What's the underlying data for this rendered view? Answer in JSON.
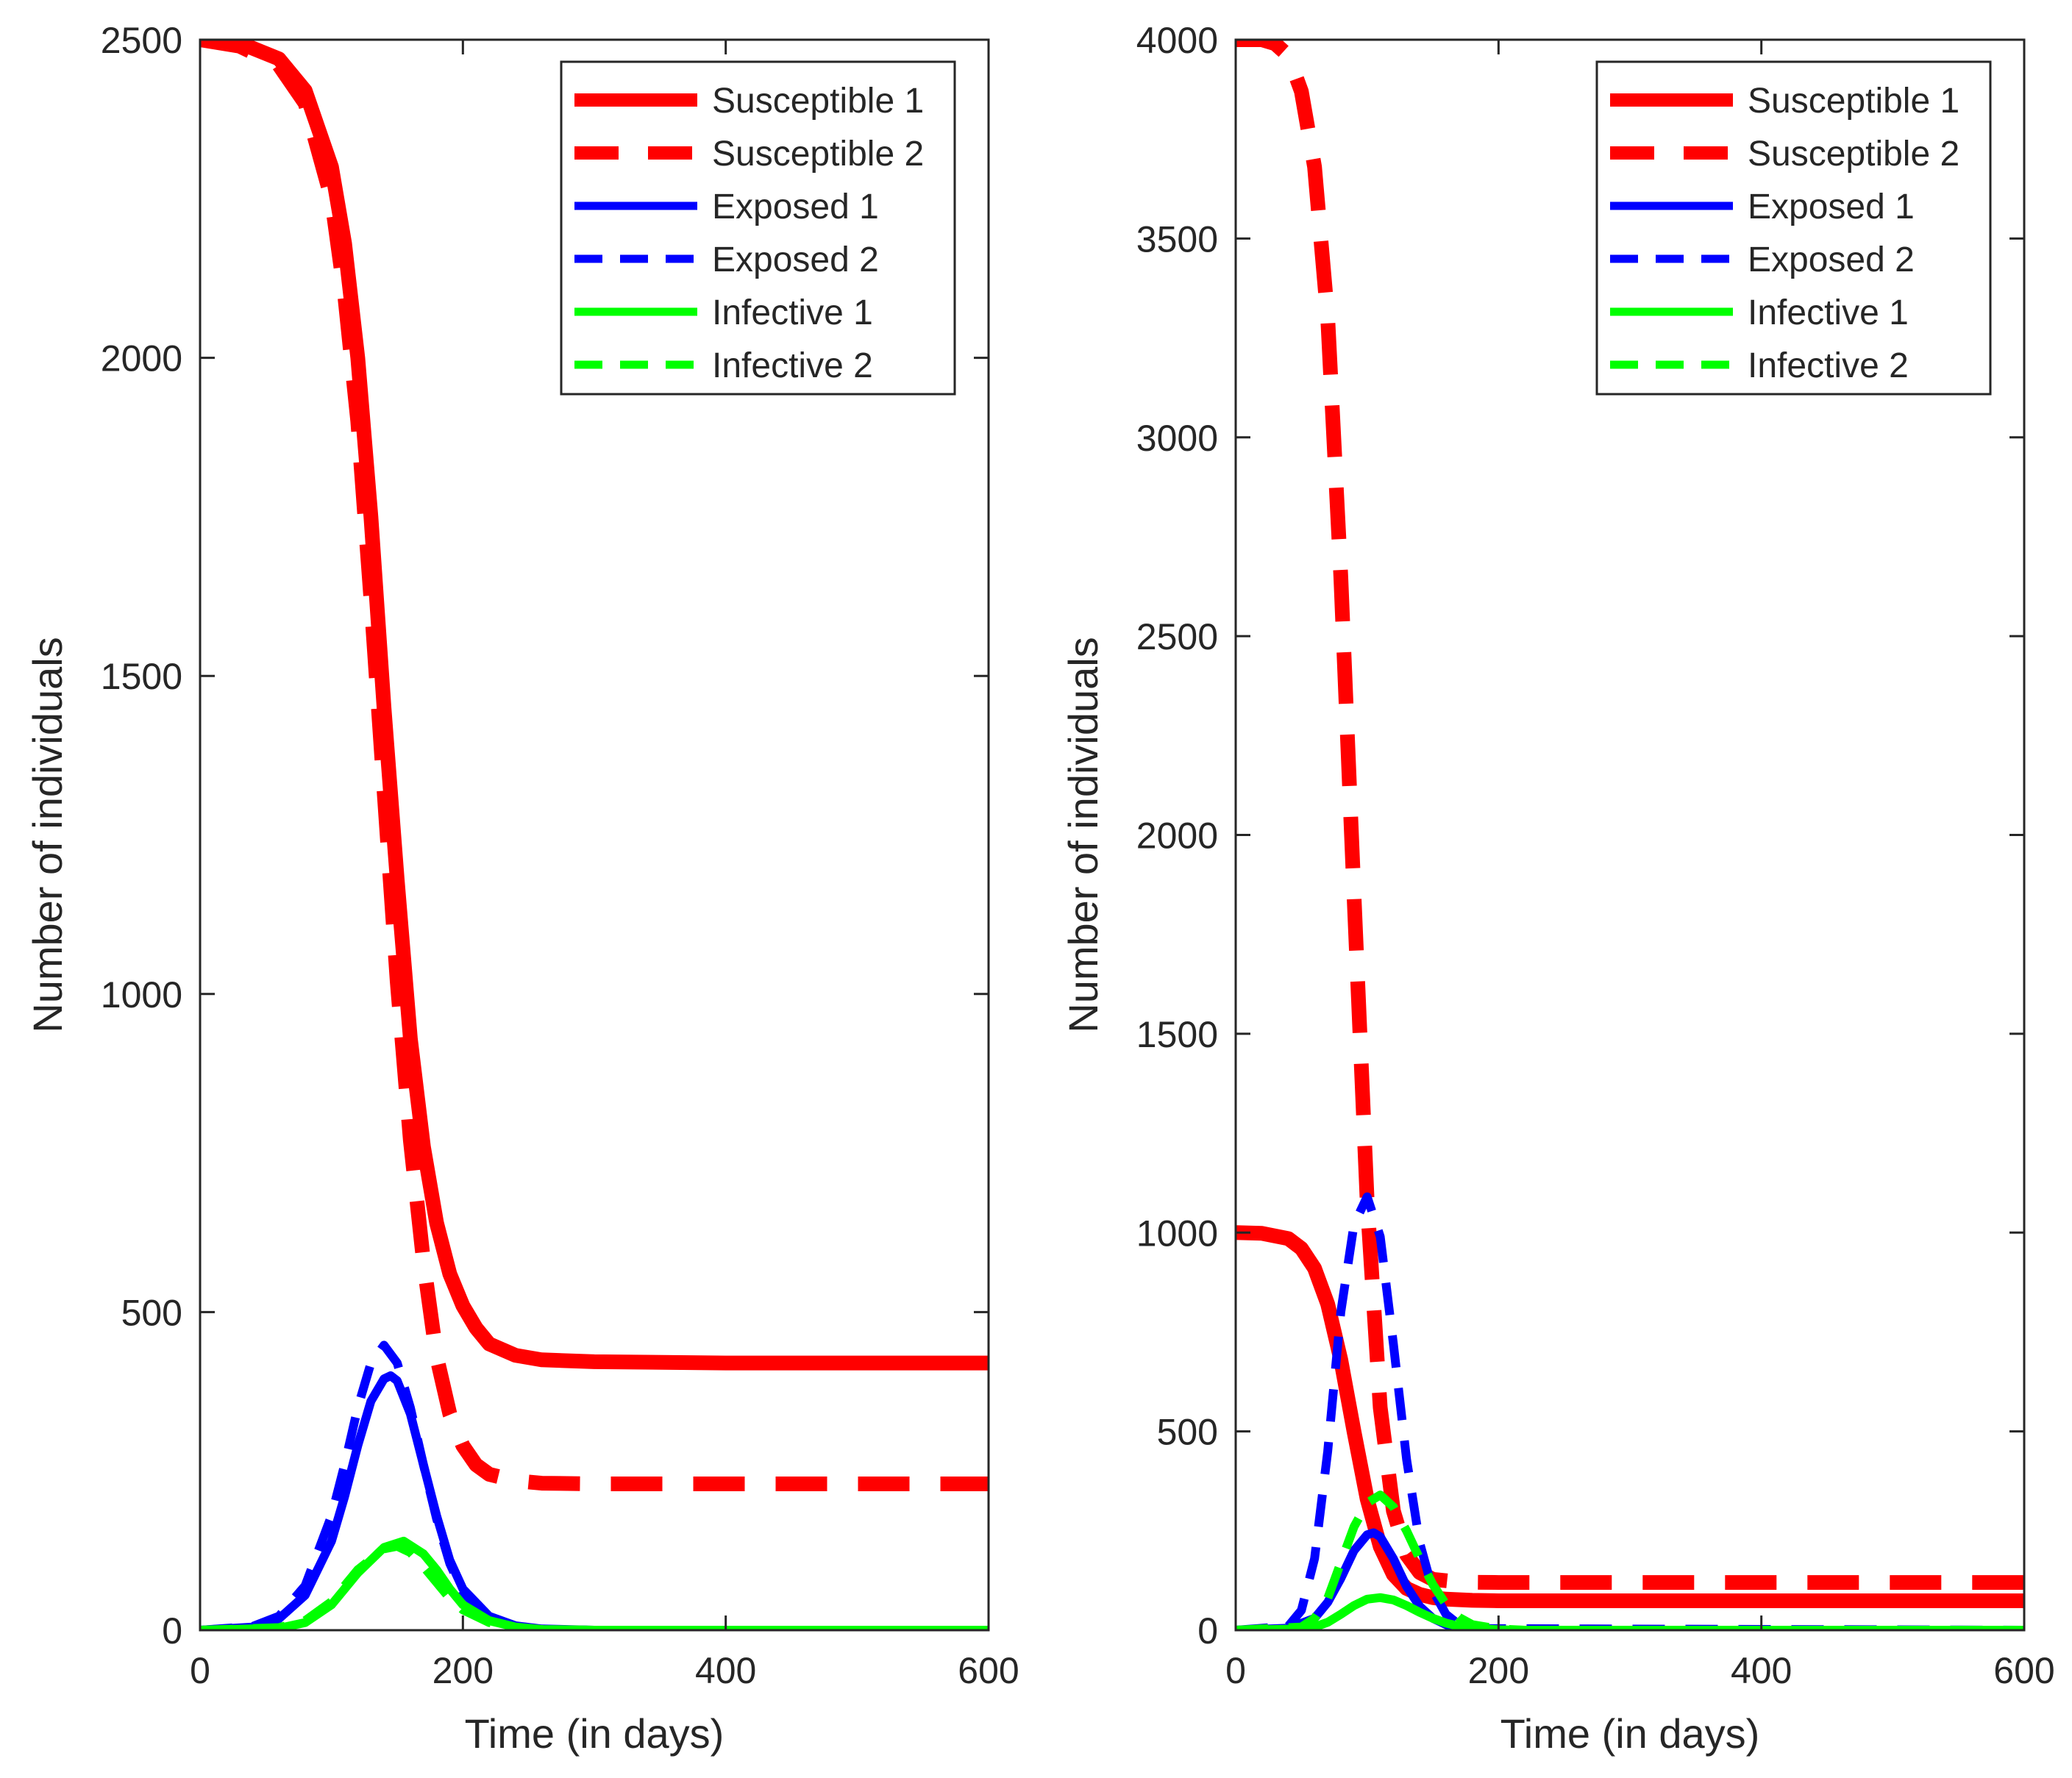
{
  "colors": {
    "susceptible": "#ff0000",
    "exposed": "#0000ff",
    "infective": "#00ff00",
    "axis": "#262626"
  },
  "chart_data": [
    {
      "type": "line",
      "title": "",
      "xlabel": "Time (in days)",
      "ylabel": "Number of individuals",
      "xlim": [
        0,
        600
      ],
      "ylim": [
        0,
        2500
      ],
      "xticks": [
        0,
        200,
        400,
        600
      ],
      "yticks": [
        0,
        500,
        1000,
        1500,
        2000,
        2500
      ],
      "legend_position": "top-right",
      "series": [
        {
          "name": "Susceptible 1",
          "color": "#ff0000",
          "style": "solid",
          "weight": "thick",
          "x": [
            0,
            30,
            60,
            80,
            100,
            110,
            120,
            130,
            140,
            150,
            160,
            170,
            180,
            190,
            200,
            210,
            220,
            240,
            260,
            300,
            400,
            600
          ],
          "y": [
            2500,
            2495,
            2470,
            2420,
            2300,
            2180,
            2000,
            1750,
            1450,
            1180,
            930,
            760,
            640,
            560,
            510,
            475,
            450,
            432,
            425,
            422,
            420,
            420
          ]
        },
        {
          "name": "Susceptible 2",
          "color": "#ff0000",
          "style": "dashed",
          "weight": "thick",
          "x": [
            0,
            30,
            60,
            80,
            100,
            110,
            120,
            130,
            140,
            150,
            160,
            170,
            180,
            190,
            200,
            210,
            220,
            240,
            260,
            300,
            400,
            600
          ],
          "y": [
            2500,
            2490,
            2460,
            2400,
            2250,
            2100,
            1900,
            1620,
            1320,
            1020,
            770,
            580,
            430,
            340,
            290,
            260,
            245,
            235,
            231,
            230,
            230,
            230
          ]
        },
        {
          "name": "Exposed 1",
          "color": "#0000ff",
          "style": "solid",
          "weight": "normal",
          "x": [
            0,
            40,
            60,
            80,
            100,
            110,
            120,
            130,
            140,
            145,
            150,
            160,
            170,
            180,
            190,
            200,
            220,
            240,
            260,
            300,
            600
          ],
          "y": [
            0,
            5,
            18,
            55,
            140,
            210,
            290,
            360,
            395,
            400,
            392,
            340,
            260,
            180,
            110,
            65,
            22,
            7,
            2,
            0,
            0
          ]
        },
        {
          "name": "Exposed 2",
          "color": "#0000ff",
          "style": "dashed",
          "weight": "normal",
          "x": [
            0,
            40,
            60,
            80,
            100,
            110,
            120,
            130,
            140,
            150,
            160,
            170,
            180,
            190,
            200,
            220,
            240,
            260,
            300,
            600
          ],
          "y": [
            0,
            6,
            22,
            70,
            180,
            260,
            350,
            420,
            448,
            420,
            350,
            260,
            175,
            105,
            60,
            18,
            5,
            1,
            0,
            0
          ]
        },
        {
          "name": "Infective 1",
          "color": "#00ff00",
          "style": "solid",
          "weight": "normal",
          "x": [
            0,
            60,
            80,
            100,
            120,
            140,
            155,
            170,
            180,
            190,
            200,
            220,
            240,
            260,
            300,
            600
          ],
          "y": [
            0,
            3,
            12,
            40,
            90,
            130,
            140,
            120,
            95,
            65,
            40,
            15,
            5,
            1,
            0,
            0
          ]
        },
        {
          "name": "Infective 2",
          "color": "#00ff00",
          "style": "dashed",
          "weight": "normal",
          "x": [
            0,
            60,
            80,
            100,
            120,
            140,
            150,
            160,
            170,
            180,
            190,
            200,
            220,
            240,
            260,
            300,
            600
          ],
          "y": [
            0,
            4,
            15,
            45,
            95,
            128,
            132,
            122,
            100,
            75,
            50,
            32,
            12,
            4,
            1,
            0,
            0
          ]
        }
      ]
    },
    {
      "type": "line",
      "title": "",
      "xlabel": "Time (in days)",
      "ylabel": "Number of individuals",
      "xlim": [
        0,
        600
      ],
      "ylim": [
        0,
        4000
      ],
      "xticks": [
        0,
        200,
        400,
        600
      ],
      "yticks": [
        0,
        500,
        1000,
        1500,
        2000,
        2500,
        3000,
        3500,
        4000
      ],
      "legend_position": "top-right",
      "series": [
        {
          "name": "Susceptible 1",
          "color": "#ff0000",
          "style": "solid",
          "weight": "thick",
          "x": [
            0,
            20,
            40,
            50,
            60,
            70,
            80,
            90,
            100,
            110,
            120,
            130,
            140,
            150,
            160,
            180,
            200,
            250,
            600
          ],
          "y": [
            1000,
            998,
            985,
            960,
            910,
            820,
            680,
            500,
            330,
            210,
            140,
            105,
            90,
            82,
            78,
            75,
            74,
            74,
            74
          ]
        },
        {
          "name": "Susceptible 2",
          "color": "#ff0000",
          "style": "dashed",
          "weight": "thick",
          "x": [
            0,
            20,
            30,
            40,
            50,
            60,
            70,
            80,
            90,
            100,
            110,
            120,
            130,
            140,
            150,
            170,
            200,
            250,
            600
          ],
          "y": [
            4000,
            4000,
            3990,
            3960,
            3870,
            3680,
            3300,
            2650,
            1850,
            1080,
            560,
            300,
            190,
            145,
            128,
            121,
            120,
            120,
            120
          ]
        },
        {
          "name": "Exposed 1",
          "color": "#0000ff",
          "style": "solid",
          "weight": "normal",
          "x": [
            0,
            40,
            60,
            70,
            80,
            90,
            100,
            105,
            110,
            120,
            130,
            140,
            150,
            160,
            170,
            180,
            200,
            600
          ],
          "y": [
            0,
            5,
            30,
            70,
            130,
            200,
            240,
            245,
            235,
            180,
            110,
            60,
            30,
            14,
            6,
            2,
            0,
            0
          ]
        },
        {
          "name": "Exposed 2",
          "color": "#0000ff",
          "style": "dashed",
          "weight": "normal",
          "x": [
            0,
            40,
            50,
            60,
            70,
            80,
            90,
            100,
            110,
            120,
            130,
            140,
            150,
            160,
            170,
            180,
            600
          ],
          "y": [
            0,
            10,
            50,
            180,
            450,
            800,
            1020,
            1090,
            990,
            720,
            430,
            220,
            100,
            40,
            14,
            4,
            0
          ]
        },
        {
          "name": "Infective 1",
          "color": "#00ff00",
          "style": "solid",
          "weight": "normal",
          "x": [
            0,
            50,
            60,
            70,
            80,
            90,
            100,
            110,
            120,
            130,
            140,
            150,
            160,
            170,
            180,
            200,
            220,
            600
          ],
          "y": [
            0,
            3,
            8,
            20,
            40,
            62,
            78,
            82,
            76,
            62,
            45,
            30,
            18,
            10,
            5,
            1,
            0,
            0
          ]
        },
        {
          "name": "Infective 2",
          "color": "#00ff00",
          "style": "dashed",
          "weight": "normal",
          "x": [
            0,
            50,
            60,
            70,
            80,
            90,
            100,
            110,
            120,
            130,
            140,
            150,
            160,
            170,
            180,
            200,
            220,
            600
          ],
          "y": [
            0,
            8,
            30,
            80,
            170,
            260,
            320,
            340,
            310,
            250,
            180,
            115,
            65,
            32,
            14,
            3,
            0,
            0
          ]
        }
      ]
    }
  ]
}
